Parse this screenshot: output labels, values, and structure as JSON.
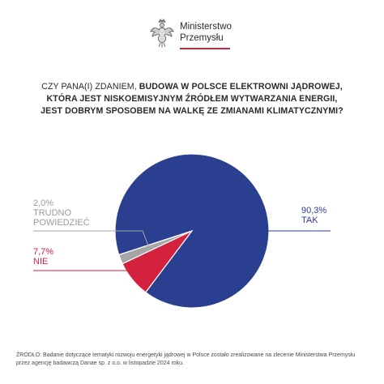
{
  "header": {
    "logo_line1": "Ministerstwo",
    "logo_line2": "Przemysłu"
  },
  "question": {
    "line1_normal": "CZY PANA(I) ZDANIEM, ",
    "line1_bold": "BUDOWA W POLSCE ELEKTROWNI JĄDROWEJ,",
    "line2": "KTÓRA JEST NISKOEMISYJNYM ŹRÓDŁEM WYTWARZANIA ENERGII,",
    "line3": "JEST DOBRYM SPOSOBEM NA WALKĘ ZE ZMIANAMI KLIMATYCZNYMI?"
  },
  "chart_data": {
    "type": "pie",
    "slices": [
      {
        "label_value": "90,3%",
        "label": "TAK",
        "value": 90.3,
        "color": "#2a3f8f"
      },
      {
        "label_value": "7,7%",
        "label": "NIE",
        "value": 7.7,
        "color": "#d4213d"
      },
      {
        "label_value": "2,0%",
        "label": "TRUDNO POWIEDZIEĆ",
        "label_line1": "TRUDNO",
        "label_line2": "POWIEDZIEĆ",
        "value": 2.0,
        "color": "#a6a6a6"
      }
    ]
  },
  "footer": {
    "source_line1": "ŹRÓDŁO: Badanie dotyczące tematyki rozwoju energetyki jądrowej w Polsce zostało zrealizowane na zlecenie Ministerstwa Przemysłu",
    "source_line2": "przez agencję badawczą Danae sp. z o.o. w listopadzie 2024 roku."
  }
}
